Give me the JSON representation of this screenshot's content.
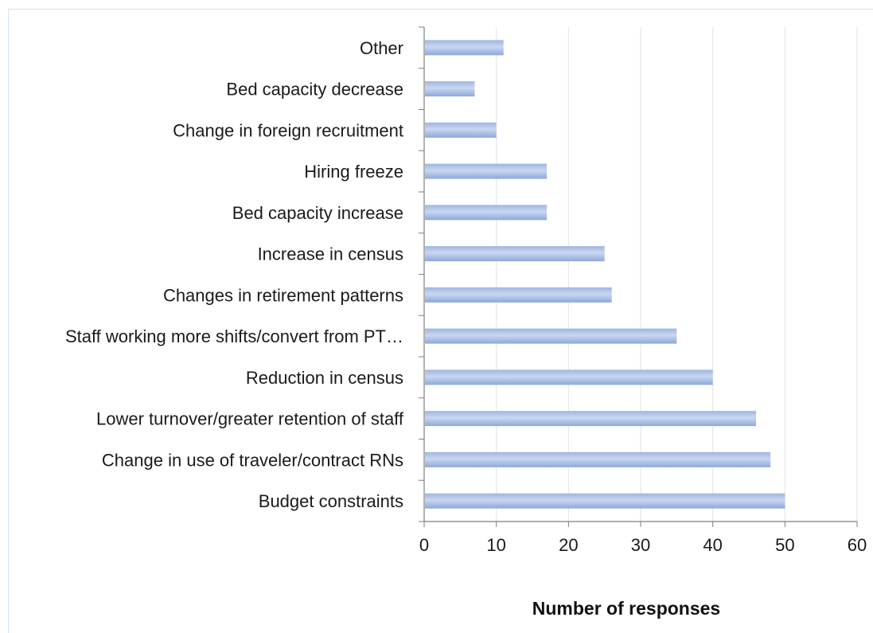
{
  "chart_data": {
    "type": "bar",
    "orientation": "horizontal",
    "title": "",
    "xlabel": "Number of responses",
    "ylabel": "",
    "categories": [
      "Budget constraints",
      "Change in use of traveler/contract RNs",
      "Lower turnover/greater retention of staff",
      "Reduction in census",
      "Staff working more shifts/convert from PT…",
      "Changes in retirement patterns",
      "Increase in census",
      "Bed capacity increase",
      "Hiring freeze",
      "Change in foreign recruitment",
      "Bed capacity decrease",
      "Other"
    ],
    "values": [
      50,
      48,
      46,
      40,
      35,
      26,
      25,
      17,
      17,
      10,
      7,
      11
    ],
    "xlim": [
      0,
      60
    ],
    "xticks": [
      "0",
      "10",
      "20",
      "30",
      "40",
      "50",
      "60"
    ],
    "grid": "vertical",
    "legend": "none",
    "colors": {
      "bar_top": "#9fb6e2",
      "bar_mid": "#c9d7f1",
      "bar_bottom": "#8ea8da",
      "gridline": "#e3e3e3",
      "axis": "#7f7f7f"
    }
  }
}
